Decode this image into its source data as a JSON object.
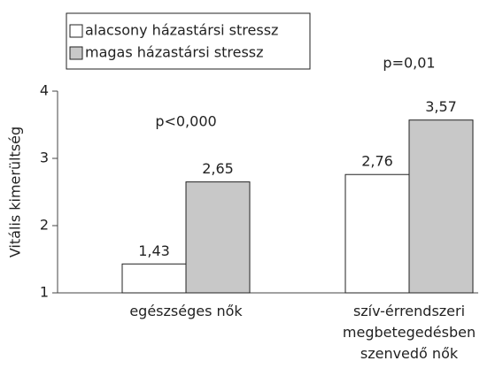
{
  "chart_data": {
    "type": "bar",
    "y_label": "Vitális kimerültség",
    "categories": [
      "egészséges nők",
      "szív-érrendszeri megbetegedésben szenvedő nők"
    ],
    "series": [
      {
        "name": "alacsony házastársi stressz",
        "color": "#ffffff",
        "values": [
          1.43,
          2.76
        ],
        "value_labels": [
          "1,43",
          "2,76"
        ]
      },
      {
        "name": "magas házastársi stressz",
        "color": "#c8c8c8",
        "values": [
          2.65,
          3.57
        ],
        "value_labels": [
          "2,65",
          "3,57"
        ]
      }
    ],
    "annotations": [
      "p<0,000",
      "p=0,01"
    ],
    "ylim": [
      1,
      4
    ],
    "yticks": [
      1,
      2,
      3,
      4
    ],
    "grid": false
  }
}
